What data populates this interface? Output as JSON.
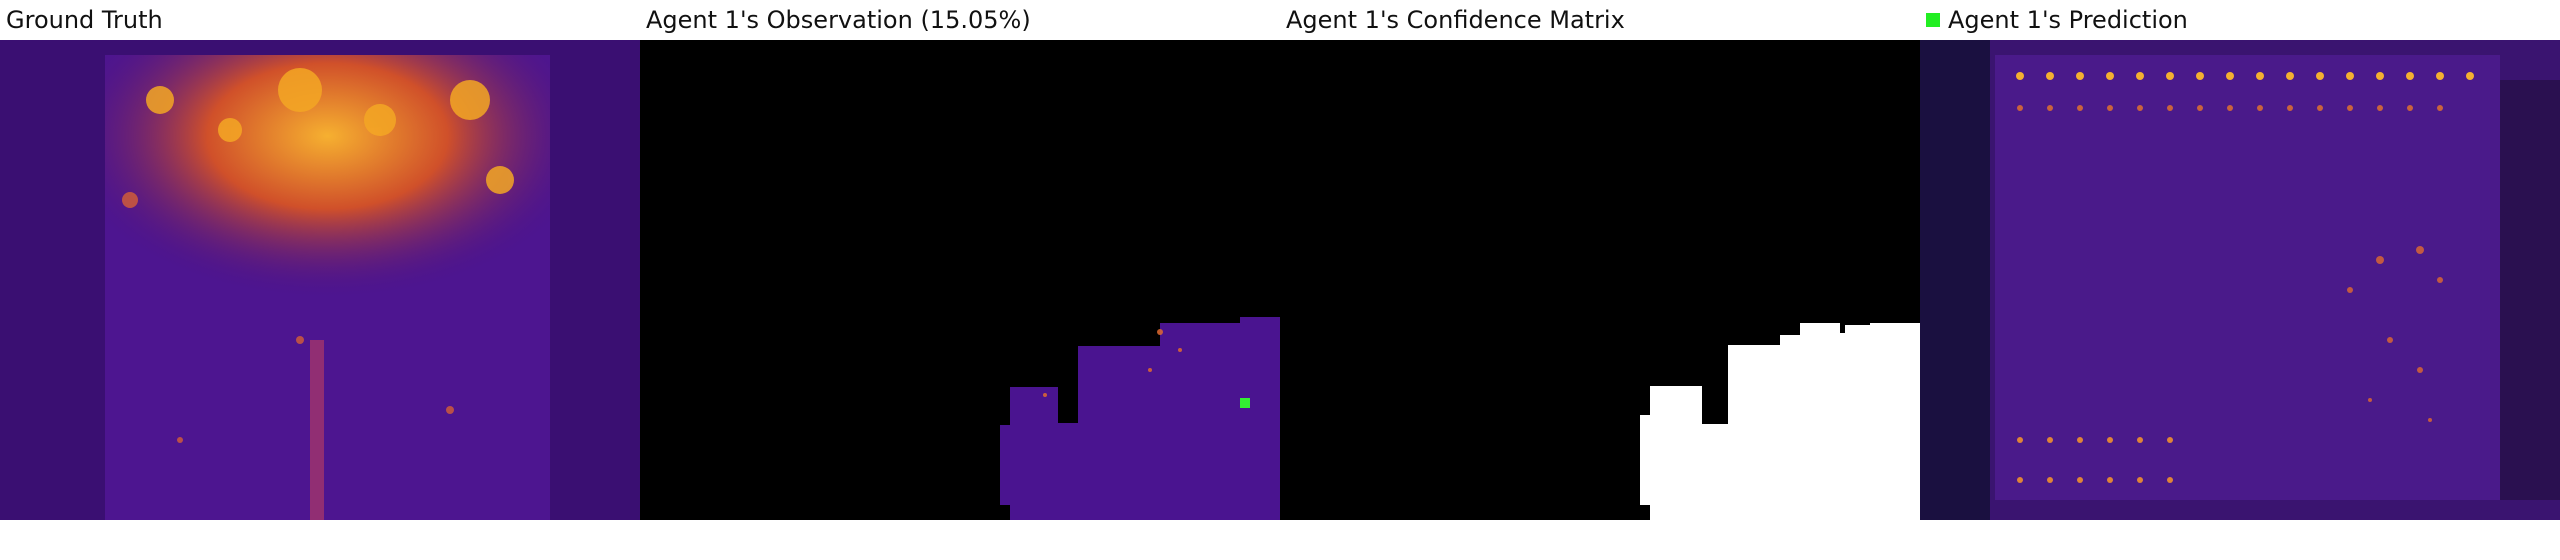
{
  "panels": [
    {
      "title": "Ground Truth"
    },
    {
      "title": "Agent 1's Observation (15.05%)"
    },
    {
      "title": "Agent 1's Confidence Matrix"
    },
    {
      "title": "Agent 1's Prediction"
    }
  ],
  "legend": {
    "marker_color": "#22ee22",
    "marker_icon": "green-square-icon"
  },
  "colors": {
    "background_dark": "#2a0a5e",
    "mid": "#5a1a8a",
    "hot": "#f0a020",
    "mask_black": "#000000",
    "mask_white": "#ffffff"
  }
}
